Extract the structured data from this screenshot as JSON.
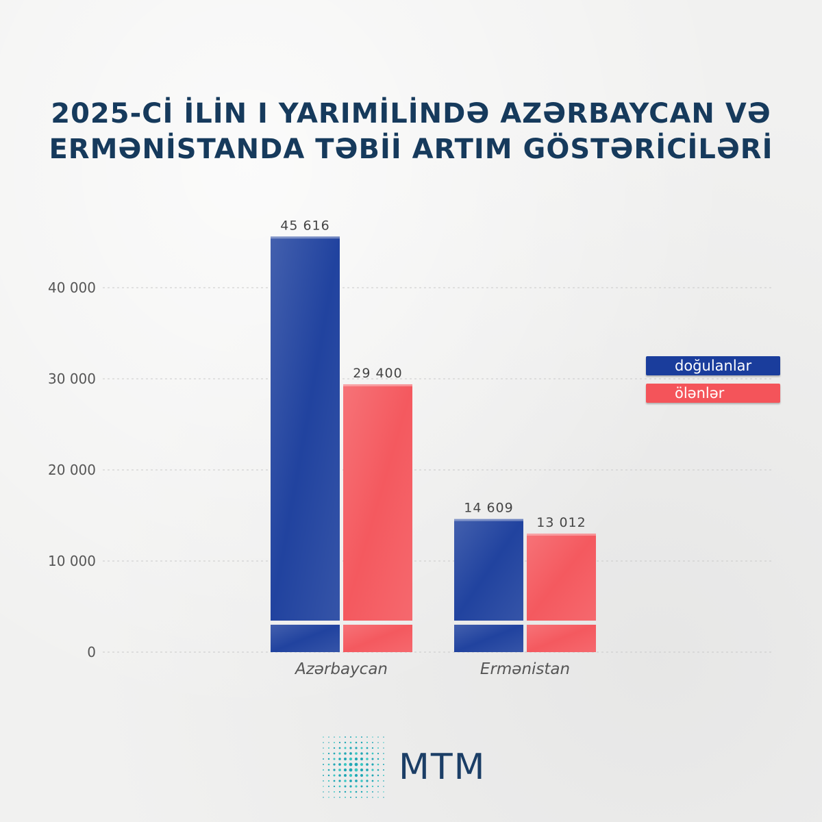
{
  "title": {
    "line1": "2025-Cİ İLİN I YARIMİLİNDƏ AZƏRBAYCAN VƏ",
    "line2": "ERMƏNİSTANDA TƏBİİ ARTIM GÖSTƏRİCİLƏRİ"
  },
  "legend": {
    "births": "doğulanlar",
    "deaths": "ölənlər"
  },
  "logo": {
    "text": "MTM"
  },
  "colors": {
    "births": "#1a3d9c",
    "deaths": "#f4545a",
    "title": "#163a5c",
    "axis_text": "#555555"
  },
  "chart_data": {
    "type": "bar",
    "categories": [
      "Azərbaycan",
      "Ermənistan"
    ],
    "series": [
      {
        "name": "doğulanlar",
        "values": [
          45616,
          14609
        ],
        "labels": [
          "45 616",
          "14 609"
        ]
      },
      {
        "name": "ölənlər",
        "values": [
          29400,
          13012
        ],
        "labels": [
          "29 400",
          "13 012"
        ]
      }
    ],
    "yticks": [
      0,
      10000,
      20000,
      30000,
      40000
    ],
    "ytick_labels": [
      "0",
      "10 000",
      "20 000",
      "30 000",
      "40 000"
    ],
    "ylim": [
      0,
      48000
    ],
    "grid": true,
    "legend_position": "right"
  }
}
